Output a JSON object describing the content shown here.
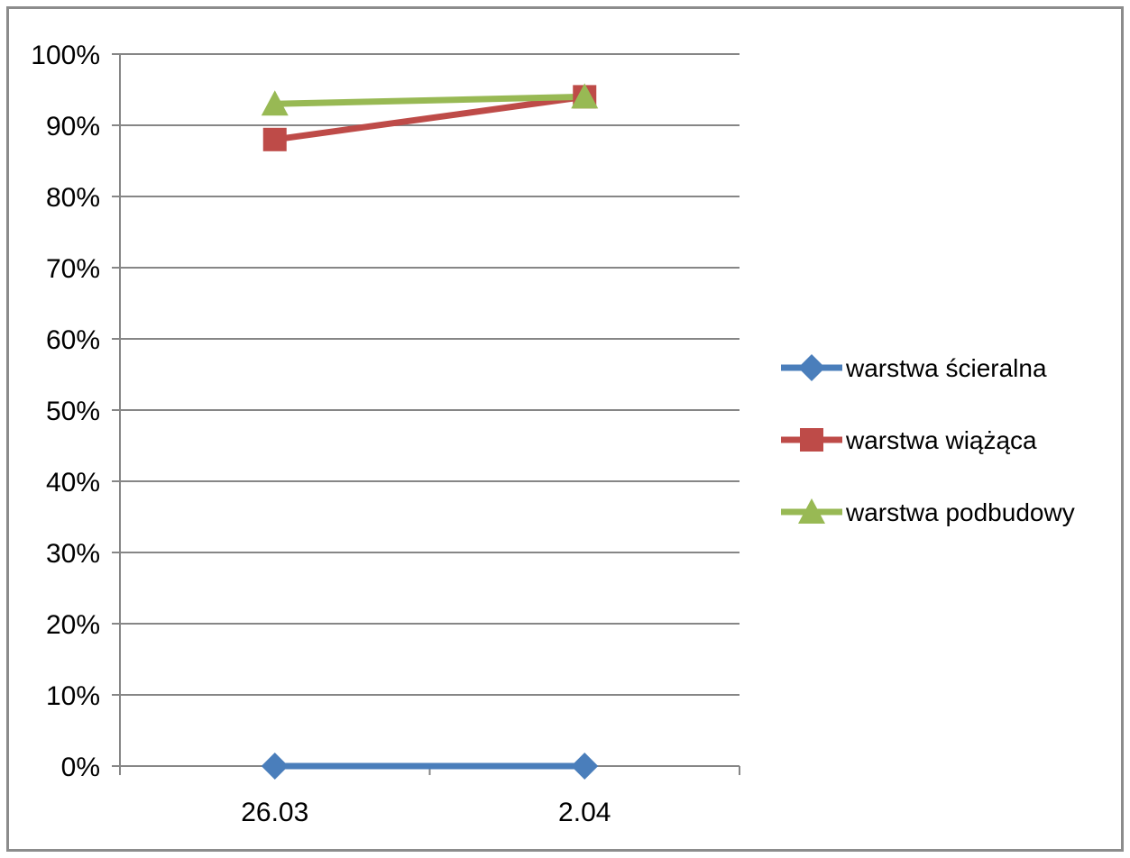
{
  "chart_data": {
    "type": "line",
    "title": "",
    "xlabel": "",
    "ylabel": "",
    "categories": [
      "26.03",
      "2.04"
    ],
    "ylim": [
      0,
      1
    ],
    "y_ticks": [
      "0%",
      "10%",
      "20%",
      "30%",
      "40%",
      "50%",
      "60%",
      "70%",
      "80%",
      "90%",
      "100%"
    ],
    "grid": "horizontal",
    "legend_position": "right",
    "series": [
      {
        "name": "warstwa ścieralna",
        "values": [
          0.0,
          0.0
        ],
        "color": "#4a7ebb",
        "marker": "diamond"
      },
      {
        "name": "warstwa wiążąca",
        "values": [
          0.88,
          0.94
        ],
        "color": "#be4b48",
        "marker": "square"
      },
      {
        "name": "warstwa podbudowy",
        "values": [
          0.93,
          0.94
        ],
        "color": "#98b954",
        "marker": "triangle"
      }
    ]
  }
}
